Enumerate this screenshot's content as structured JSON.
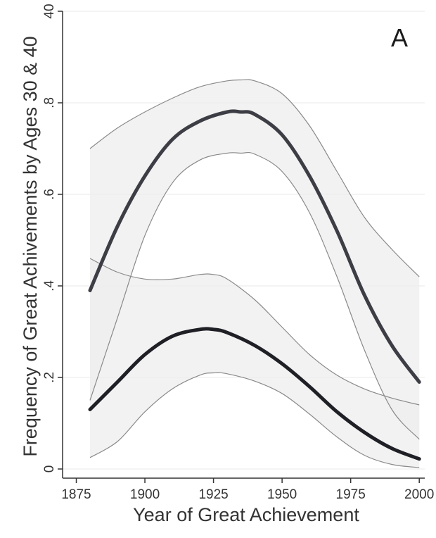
{
  "chart_data": {
    "type": "line",
    "panel_label": "A",
    "xlabel": "Year of Great Achievement",
    "ylabel": "Frequency of Great Achivements by Ages 30 & 40",
    "xlim": [
      1870,
      2002
    ],
    "ylim": [
      -0.02,
      1.0
    ],
    "x_ticks": [
      1875,
      1900,
      1925,
      1950,
      1975,
      2000
    ],
    "x_tick_labels": [
      "1875",
      "1900",
      "1925",
      "1950",
      "1975",
      "2000"
    ],
    "y_ticks": [
      0,
      0.2,
      0.4,
      0.6,
      0.8
    ],
    "y_tick_labels": [
      "0",
      ".2",
      ".4",
      ".6",
      ".8"
    ],
    "top_tick_label": "40",
    "grid": true,
    "series": [
      {
        "x": [
          1880,
          1890,
          1900,
          1910,
          1920,
          1930,
          1935,
          1940,
          1950,
          1960,
          1970,
          1980,
          1990,
          2000
        ],
        "mean": [
          0.39,
          0.53,
          0.64,
          0.72,
          0.76,
          0.78,
          0.78,
          0.775,
          0.73,
          0.64,
          0.52,
          0.38,
          0.27,
          0.19
        ],
        "upper": [
          0.7,
          0.745,
          0.78,
          0.81,
          0.835,
          0.848,
          0.85,
          0.848,
          0.82,
          0.75,
          0.65,
          0.55,
          0.48,
          0.42
        ],
        "lower": [
          0.15,
          0.33,
          0.51,
          0.625,
          0.675,
          0.69,
          0.69,
          0.688,
          0.65,
          0.56,
          0.42,
          0.26,
          0.13,
          0.065
        ],
        "color": "#3d3d45"
      },
      {
        "x": [
          1880,
          1890,
          1900,
          1910,
          1920,
          1925,
          1930,
          1940,
          1950,
          1960,
          1970,
          1980,
          1990,
          2000
        ],
        "mean": [
          0.13,
          0.19,
          0.25,
          0.29,
          0.305,
          0.305,
          0.298,
          0.27,
          0.23,
          0.18,
          0.125,
          0.08,
          0.045,
          0.022
        ],
        "upper": [
          0.46,
          0.43,
          0.415,
          0.415,
          0.425,
          0.425,
          0.415,
          0.37,
          0.31,
          0.25,
          0.205,
          0.175,
          0.155,
          0.14
        ],
        "lower": [
          0.025,
          0.06,
          0.125,
          0.175,
          0.205,
          0.21,
          0.208,
          0.192,
          0.165,
          0.12,
          0.07,
          0.03,
          0.01,
          0.003
        ],
        "color": "#1f1f26"
      }
    ],
    "colors": {
      "band": "#eeeeee",
      "ci_line": "#8a8a8a",
      "axis": "#333333",
      "grid": "#f0f0f0",
      "page": "#ffffff"
    }
  }
}
